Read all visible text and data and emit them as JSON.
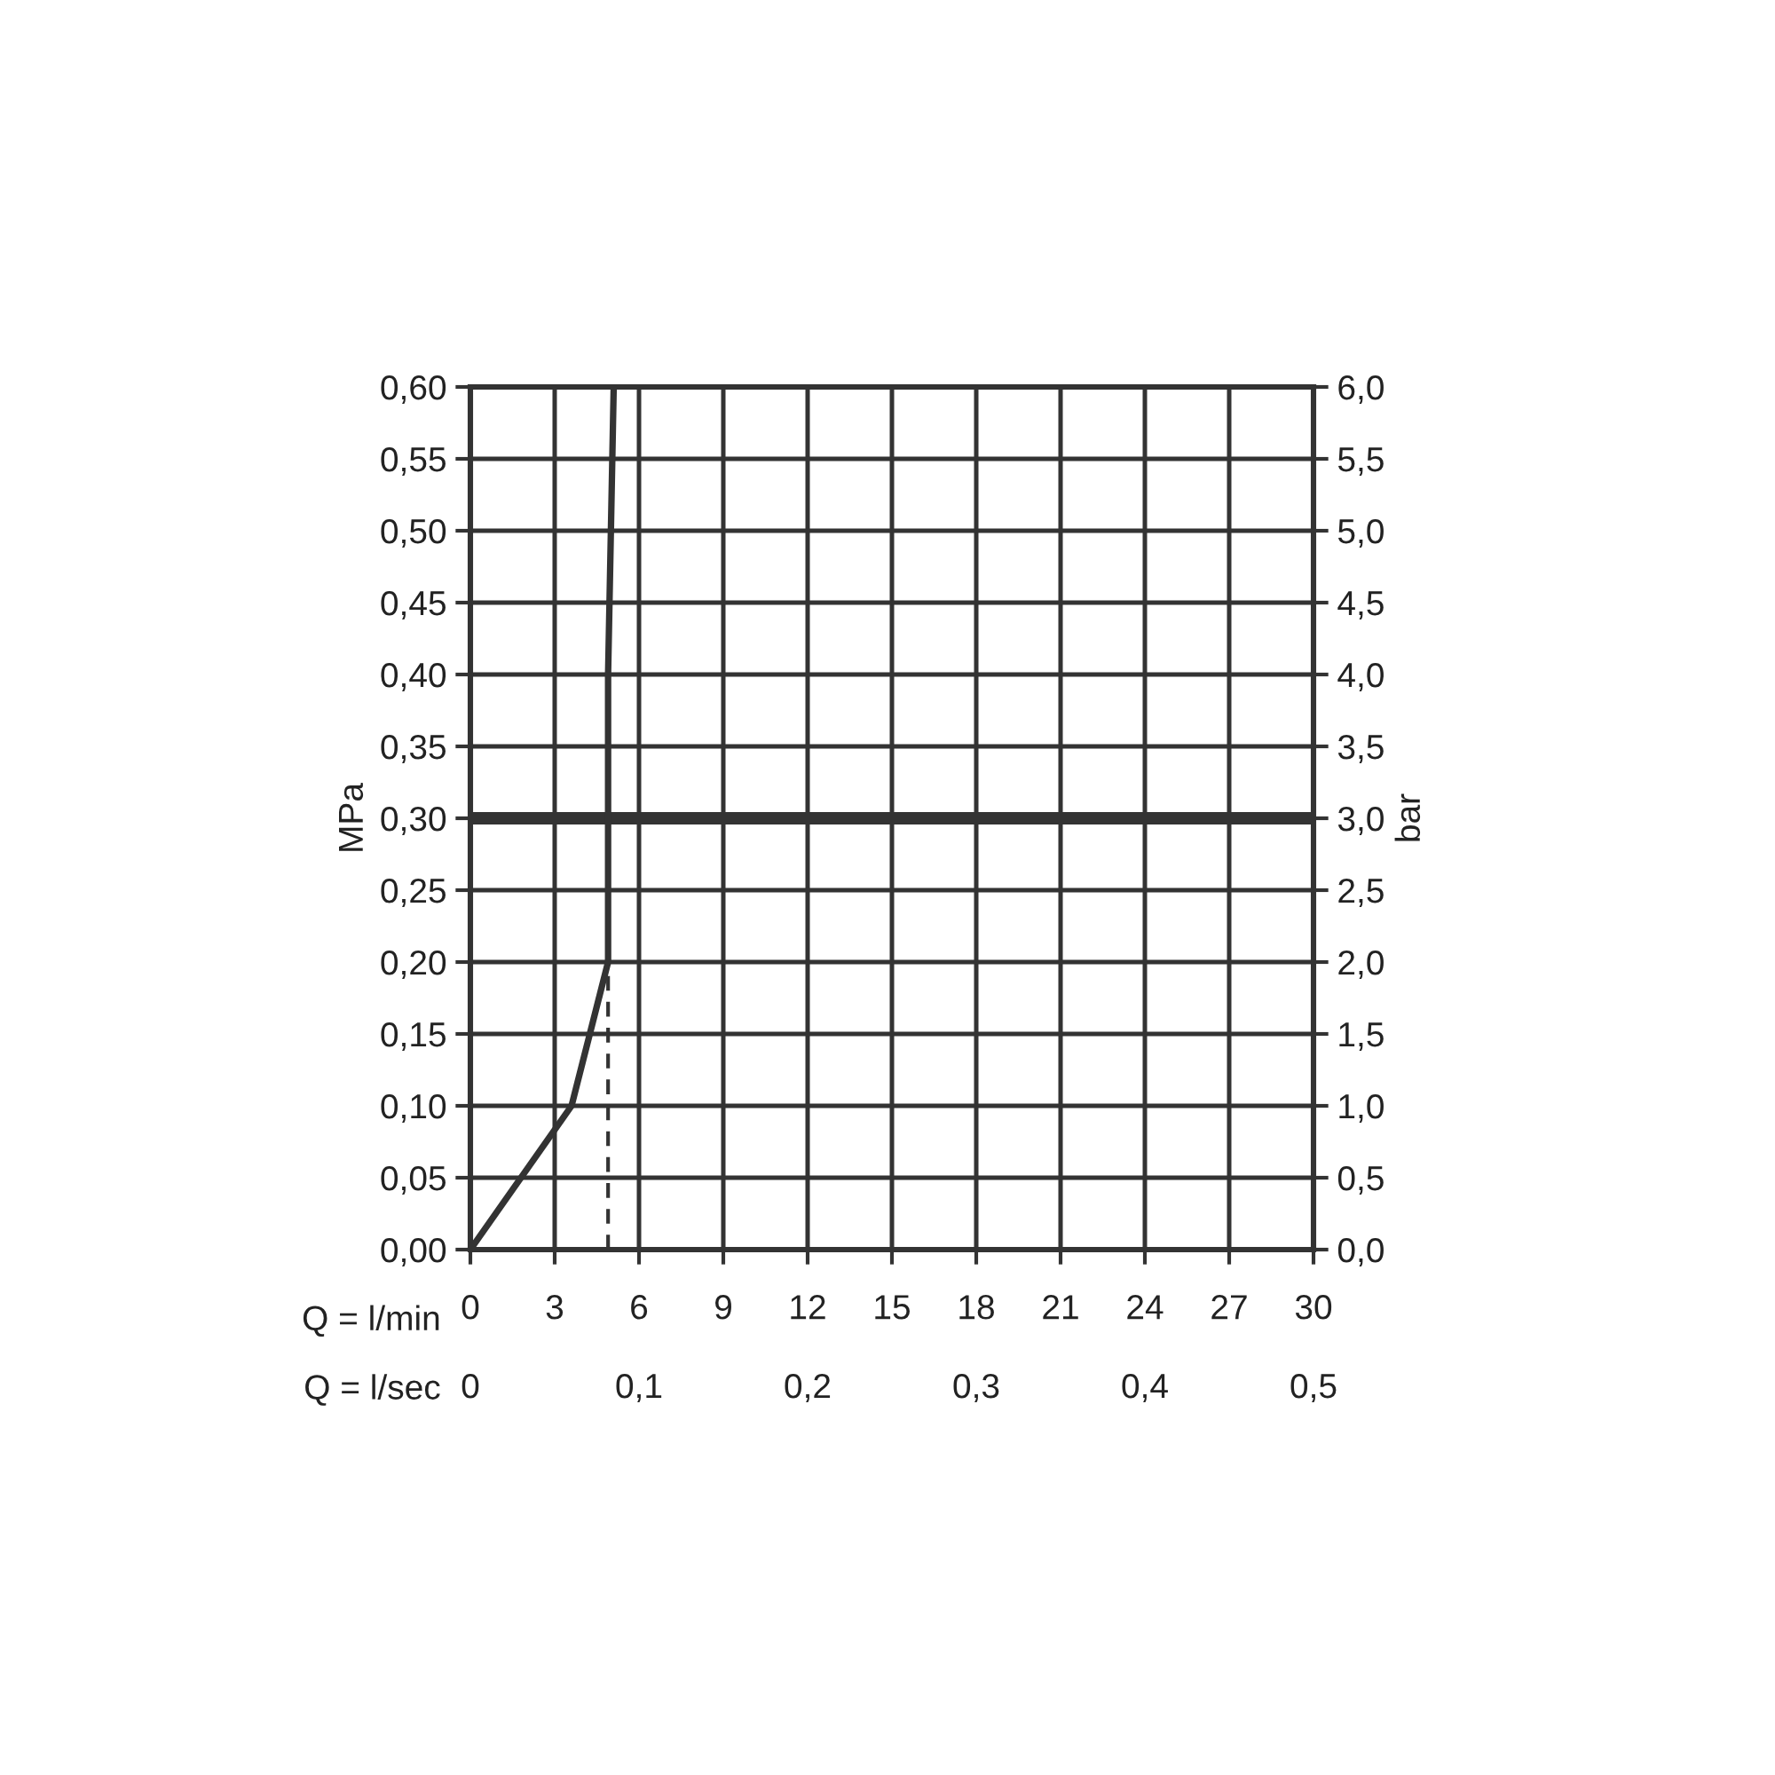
{
  "chart_data": {
    "type": "line",
    "xlabel": "Q = l/min",
    "ylabel": "MPa",
    "y2label": "bar",
    "x2label": "Q = l/sec",
    "xlim": [
      0,
      30
    ],
    "xticks": [
      0,
      3,
      6,
      9,
      12,
      15,
      18,
      21,
      24,
      27,
      30
    ],
    "x2lim": [
      0,
      0.5
    ],
    "x2ticks": [
      0,
      {
        "value": 0.1,
        "label": "0,1"
      },
      {
        "value": 0.2,
        "label": "0,2"
      },
      {
        "value": 0.3,
        "label": "0,3"
      },
      {
        "value": 0.4,
        "label": "0,4"
      },
      {
        "value": 0.5,
        "label": "0,5"
      }
    ],
    "ylim": [
      0,
      0.6
    ],
    "yticks": [
      {
        "value": 0,
        "label": "0,00"
      },
      {
        "value": 0.05,
        "label": "0,05"
      },
      {
        "value": 0.1,
        "label": "0,10"
      },
      {
        "value": 0.15,
        "label": "0,15"
      },
      {
        "value": 0.2,
        "label": "0,20"
      },
      {
        "value": 0.25,
        "label": "0,25"
      },
      {
        "value": 0.3,
        "label": "0,30"
      },
      {
        "value": 0.35,
        "label": "0,35"
      },
      {
        "value": 0.4,
        "label": "0,40"
      },
      {
        "value": 0.45,
        "label": "0,45"
      },
      {
        "value": 0.5,
        "label": "0,50"
      },
      {
        "value": 0.55,
        "label": "0,55"
      },
      {
        "value": 0.6,
        "label": "0,60"
      }
    ],
    "y2lim": [
      0,
      6
    ],
    "y2ticks": [
      {
        "value": 0,
        "label": "0,0"
      },
      {
        "value": 0.5,
        "label": "0,5"
      },
      {
        "value": 1,
        "label": "1,0"
      },
      {
        "value": 1.5,
        "label": "1,5"
      },
      {
        "value": 2,
        "label": "2,0"
      },
      {
        "value": 2.5,
        "label": "2,5"
      },
      {
        "value": 3,
        "label": "3,0"
      },
      {
        "value": 3.5,
        "label": "3,5"
      },
      {
        "value": 4,
        "label": "4,0"
      },
      {
        "value": 4.5,
        "label": "4,5"
      },
      {
        "value": 5,
        "label": "5,0"
      },
      {
        "value": 5.5,
        "label": "5,5"
      },
      {
        "value": 6,
        "label": "6,0"
      }
    ],
    "grid": true,
    "series": [
      {
        "color": "#333333",
        "x": [
          0,
          3.6,
          4.9,
          4.9,
          4.9,
          5.1
        ],
        "values": [
          0,
          0.1,
          0.2,
          0.3,
          0.4,
          0.6
        ]
      },
      {
        "color": "#333333",
        "line_style": "dashed",
        "x": [
          4.9,
          4.9
        ],
        "values": [
          0,
          0.2
        ]
      }
    ],
    "ref_lines": [
      {
        "axis": "y",
        "value": 0.3,
        "color": "#333333"
      }
    ]
  }
}
